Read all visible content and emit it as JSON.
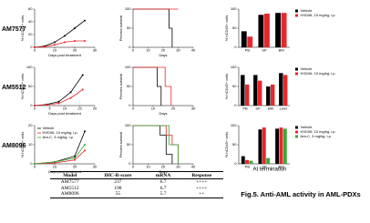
{
  "row_labels": [
    "AM7577",
    "AM5512",
    "AM8096"
  ],
  "chart_data": [
    {
      "type": "line",
      "xlabel": "Days post treatment",
      "ylabel": "% hCD45+ cells",
      "xlim": [
        0,
        30
      ],
      "xticks": [
        0,
        10,
        20,
        30
      ],
      "ylim": [
        0,
        60
      ],
      "yticks": [
        0,
        20,
        40,
        60
      ],
      "series": [
        {
          "color": "#000000",
          "x": [
            0,
            5,
            10,
            15,
            20,
            25
          ],
          "values": [
            0,
            2,
            8,
            18,
            30,
            42
          ]
        },
        {
          "color": "#e8262b",
          "x": [
            0,
            5,
            10,
            15,
            20,
            25
          ],
          "values": [
            0,
            1,
            4,
            8,
            10,
            10
          ]
        }
      ]
    },
    {
      "type": "step",
      "xlabel": "Days",
      "ylabel": "Percent survival",
      "xlim": [
        0,
        40
      ],
      "xticks": [
        0,
        10,
        20,
        30,
        40
      ],
      "ylim": [
        0,
        100
      ],
      "yticks": [
        0,
        50,
        100
      ],
      "series": [
        {
          "color": "#000000",
          "x": [
            0,
            24,
            26
          ],
          "values": [
            100,
            50,
            0
          ]
        },
        {
          "color": "#e8262b",
          "x": [
            0,
            30
          ],
          "values": [
            100,
            100
          ]
        }
      ]
    },
    {
      "type": "bar",
      "ylabel": "% hCD45+ cells",
      "legend": "right",
      "categories": [
        "PB",
        "SP",
        "BM"
      ],
      "ylim": [
        0,
        100
      ],
      "yticks": [
        0,
        50,
        100
      ],
      "series": [
        {
          "name": "Vehicle",
          "color": "#000000",
          "values": [
            42,
            85,
            90
          ]
        },
        {
          "name": "HXD06, 10 mg/kg, i.p.",
          "color": "#e8262b",
          "values": [
            28,
            88,
            90
          ]
        }
      ]
    },
    {
      "type": "line",
      "xlabel": "Days post treatment",
      "ylabel": "% hCD45+ cells",
      "xlim": [
        0,
        20
      ],
      "xticks": [
        0,
        5,
        10,
        15,
        20
      ],
      "ylim": [
        0,
        100
      ],
      "yticks": [
        0,
        50,
        100
      ],
      "series": [
        {
          "color": "#000000",
          "x": [
            0,
            4,
            8,
            12,
            16
          ],
          "values": [
            0,
            3,
            10,
            35,
            80
          ]
        },
        {
          "color": "#e8262b",
          "x": [
            0,
            4,
            8,
            12,
            16
          ],
          "values": [
            0,
            2,
            6,
            20,
            42
          ]
        }
      ]
    },
    {
      "type": "step",
      "xlabel": "Days",
      "ylabel": "Percent survival",
      "xlim": [
        0,
        30
      ],
      "xticks": [
        0,
        10,
        20,
        30
      ],
      "ylim": [
        0,
        100
      ],
      "yticks": [
        0,
        50,
        100
      ],
      "series": [
        {
          "color": "#000000",
          "x": [
            0,
            12,
            14
          ],
          "values": [
            100,
            50,
            0
          ]
        },
        {
          "color": "#e8262b",
          "x": [
            0,
            16,
            19
          ],
          "values": [
            100,
            50,
            0
          ]
        }
      ]
    },
    {
      "type": "bar",
      "ylabel": "% hCD45+ cells",
      "legend": "right",
      "categories": [
        "PB",
        "SP",
        "BM",
        "Liver"
      ],
      "ylim": [
        0,
        100
      ],
      "yticks": [
        0,
        50,
        100
      ],
      "series": [
        {
          "name": "Vehicle",
          "color": "#000000",
          "values": [
            80,
            80,
            50,
            85
          ]
        },
        {
          "name": "HXD06, 10 mg/kg, i.p.",
          "color": "#e8262b",
          "values": [
            55,
            65,
            55,
            80
          ]
        }
      ]
    },
    {
      "type": "line",
      "xlabel": "Days post treatment",
      "ylabel": "% hCD45+ cells",
      "legend": "upper left",
      "xlim": [
        0,
        30
      ],
      "xticks": [
        0,
        10,
        20,
        30
      ],
      "ylim": [
        0,
        20
      ],
      "yticks": [
        0,
        10,
        20
      ],
      "series": [
        {
          "name": "Vehicle",
          "color": "#000000",
          "x": [
            0,
            10,
            20,
            25
          ],
          "values": [
            0,
            1,
            4,
            17
          ]
        },
        {
          "name": "HXD06, 10 mg/kg, i.p.",
          "color": "#e8262b",
          "x": [
            0,
            10,
            20,
            25
          ],
          "values": [
            0,
            0.5,
            2,
            7
          ]
        },
        {
          "name": "Ara-C, 3 mg/kg, i.p.",
          "color": "#3aa935",
          "x": [
            0,
            10,
            20,
            25
          ],
          "values": [
            0,
            1,
            3,
            10
          ]
        }
      ]
    },
    {
      "type": "step",
      "xlabel": "Days",
      "ylabel": "Percent survival",
      "xlim": [
        0,
        40
      ],
      "xticks": [
        0,
        10,
        20,
        30,
        40
      ],
      "ylim": [
        0,
        100
      ],
      "yticks": [
        0,
        50,
        100
      ],
      "series": [
        {
          "color": "#000000",
          "x": [
            0,
            18,
            22,
            26
          ],
          "values": [
            100,
            75,
            25,
            0
          ]
        },
        {
          "color": "#e8262b",
          "x": [
            0,
            22,
            26,
            30
          ],
          "values": [
            100,
            75,
            50,
            0
          ]
        },
        {
          "color": "#3aa935",
          "x": [
            0,
            24,
            30
          ],
          "values": [
            100,
            50,
            0
          ]
        }
      ]
    },
    {
      "type": "bar",
      "ylabel": "% hCD45+ cells",
      "legend": "right",
      "categories": [
        "PB",
        "SP",
        "BM"
      ],
      "ylim": [
        0,
        100
      ],
      "yticks": [
        0,
        50,
        100
      ],
      "series": [
        {
          "name": "Vehicle",
          "color": "#000000",
          "values": [
            20,
            90,
            92
          ]
        },
        {
          "name": "HXD06, 10 mg/kg, i.p.",
          "color": "#e8262b",
          "values": [
            10,
            95,
            95
          ]
        },
        {
          "name": "Ara-C, 3 mg/kg, i.p.",
          "color": "#3aa935",
          "values": [
            8,
            15,
            92
          ]
        }
      ]
    }
  ],
  "side_label": "At termination",
  "table": {
    "header": [
      "Model",
      "IHC-R-score",
      "mRNA",
      "Response"
    ],
    "rows": [
      [
        "AM7577",
        237,
        6.7,
        "++++"
      ],
      [
        "AM5512",
        198,
        6.7,
        "++++"
      ],
      [
        "AM8096",
        55,
        5.7,
        "++"
      ]
    ]
  },
  "caption": "Fig.5. Anti-AML activity in AML-PDXs"
}
